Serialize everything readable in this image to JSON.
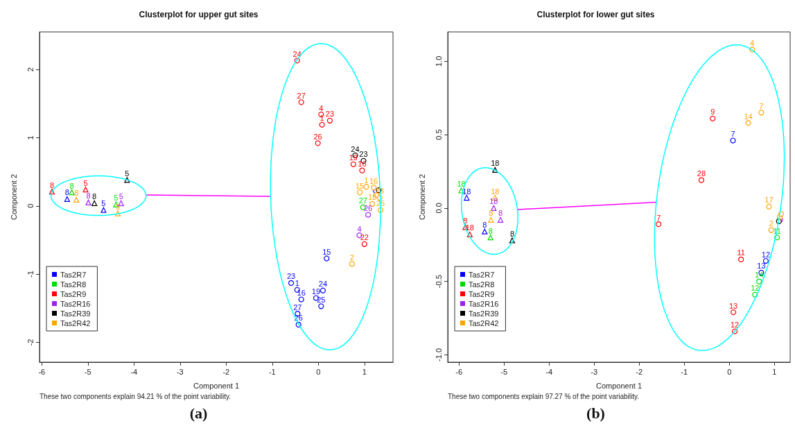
{
  "chart_data": [
    {
      "type": "scatter",
      "title": "Clusterplot for upper gut sites",
      "xlabel": "Component 1",
      "ylabel": "Component 2",
      "xlim": [
        -6.05,
        1.62
      ],
      "ylim": [
        -2.29,
        2.55
      ],
      "xticks": [
        -6,
        -5,
        -4,
        -3,
        -2,
        -1,
        0,
        1
      ],
      "yticks": [
        -2,
        -1,
        0,
        1,
        2
      ],
      "legend": "bottom left",
      "annotations": [
        "These two components explain 94.21 % of the point variability.",
        "(a)",
        {
          "text": "8",
          "x": -5.45,
          "y": 0.1
        },
        {
          "text": "5",
          "x": -4.66,
          "y": -0.06
        },
        {
          "text": "8",
          "x": -5.35,
          "y": 0.2
        },
        {
          "text": "5",
          "x": -4.39,
          "y": 0.02
        },
        {
          "text": "8",
          "x": -5.78,
          "y": 0.21
        },
        {
          "text": "5",
          "x": -5.05,
          "y": 0.24
        },
        {
          "text": "8",
          "x": -4.99,
          "y": 0.05
        },
        {
          "text": "5",
          "x": -4.28,
          "y": 0.04
        },
        {
          "text": "8",
          "x": -4.86,
          "y": 0.04
        },
        {
          "text": "5",
          "x": -4.15,
          "y": 0.38
        },
        {
          "text": "8",
          "x": -5.25,
          "y": 0.09
        },
        {
          "text": "5",
          "x": -4.35,
          "y": -0.11
        },
        {
          "text": "23",
          "x": -0.59,
          "y": -1.13
        },
        {
          "text": "1",
          "x": -0.46,
          "y": -1.23
        },
        {
          "text": "16",
          "x": -0.37,
          "y": -1.37
        },
        {
          "text": "19",
          "x": -0.05,
          "y": -1.35
        },
        {
          "text": "24",
          "x": 0.1,
          "y": -1.24
        },
        {
          "text": "25",
          "x": 0.06,
          "y": -1.47
        },
        {
          "text": "27",
          "x": -0.45,
          "y": -1.58
        },
        {
          "text": "26",
          "x": -0.43,
          "y": -1.74
        },
        {
          "text": "15",
          "x": 0.18,
          "y": -0.77
        },
        {
          "text": "27",
          "x": 0.97,
          "y": -0.02
        },
        {
          "text": "24",
          "x": -0.46,
          "y": 2.13
        },
        {
          "text": "27",
          "x": -0.37,
          "y": 1.52
        },
        {
          "text": "4",
          "x": 0.06,
          "y": 1.34
        },
        {
          "text": "23",
          "x": 0.25,
          "y": 1.25
        },
        {
          "text": "1",
          "x": 0.08,
          "y": 1.19
        },
        {
          "text": "26",
          "x": -0.01,
          "y": 0.92
        },
        {
          "text": "19",
          "x": 0.76,
          "y": 0.61
        },
        {
          "text": "16",
          "x": 0.95,
          "y": 0.52
        },
        {
          "text": "22",
          "x": 1.0,
          "y": -0.56
        },
        {
          "text": "4",
          "x": 0.89,
          "y": -0.43
        },
        {
          "text": "26",
          "x": 1.08,
          "y": -0.13
        },
        {
          "text": "24",
          "x": 0.8,
          "y": 0.74
        },
        {
          "text": "23",
          "x": 0.98,
          "y": 0.66
        },
        {
          "text": "2",
          "x": 0.73,
          "y": -0.85
        },
        {
          "text": "15",
          "x": 0.9,
          "y": 0.2
        },
        {
          "text": "1",
          "x": 1.04,
          "y": 0.28
        },
        {
          "text": "16",
          "x": 1.2,
          "y": 0.27
        },
        {
          "text": "18",
          "x": 1.17,
          "y": 0.03
        },
        {
          "text": "25",
          "x": 1.35,
          "y": -0.06
        },
        {
          "text": "23",
          "x": 1.33,
          "y": 0.12
        }
      ],
      "series": [
        {
          "name": "Tas2R7",
          "color": "#0000ff",
          "marker": "triangle",
          "x": [
            -5.45,
            -4.66
          ],
          "values": [
            0.1,
            -0.06
          ]
        },
        {
          "name": "Tas2R8",
          "color": "#00dd00",
          "marker": "triangle",
          "x": [
            -5.35,
            -4.39
          ],
          "values": [
            0.2,
            0.02
          ]
        },
        {
          "name": "Tas2R9",
          "color": "#ff0000",
          "marker": "triangle",
          "x": [
            -5.78,
            -5.05
          ],
          "values": [
            0.21,
            0.24
          ]
        },
        {
          "name": "Tas2R16",
          "color": "#a020f0",
          "marker": "triangle",
          "x": [
            -4.99,
            -4.28
          ],
          "values": [
            0.05,
            0.04
          ]
        },
        {
          "name": "Tas2R39",
          "color": "#000000",
          "marker": "triangle",
          "x": [
            -4.86,
            -4.15
          ],
          "values": [
            0.04,
            0.38
          ]
        },
        {
          "name": "Tas2R42",
          "color": "#ffa500",
          "marker": "triangle",
          "x": [
            -5.25,
            -4.35
          ],
          "values": [
            0.09,
            -0.11
          ]
        },
        {
          "color": "#0000ff",
          "marker": "circle",
          "x": [
            -0.59,
            -0.46,
            -0.37,
            -0.05,
            0.1,
            0.06,
            -0.45,
            -0.43,
            0.18,
            1.25
          ],
          "values": [
            -1.13,
            -1.23,
            -1.37,
            -1.35,
            -1.24,
            -1.47,
            -1.58,
            -1.74,
            -0.77,
            0.22
          ]
        },
        {
          "color": "#00dd00",
          "marker": "circle",
          "x": [
            0.97
          ],
          "values": [
            -0.02
          ]
        },
        {
          "color": "#ff0000",
          "marker": "circle",
          "x": [
            -0.46,
            -0.37,
            0.06,
            0.25,
            0.08,
            -0.01,
            0.76,
            0.95,
            1.0
          ],
          "values": [
            2.13,
            1.52,
            1.34,
            1.25,
            1.19,
            0.92,
            0.61,
            0.52,
            -0.56
          ]
        },
        {
          "color": "#a020f0",
          "marker": "circle",
          "x": [
            0.89,
            1.08
          ],
          "values": [
            -0.43,
            -0.13
          ]
        },
        {
          "color": "#000000",
          "marker": "circle",
          "x": [
            0.8,
            0.98,
            1.31
          ],
          "values": [
            0.74,
            0.66,
            0.23
          ]
        },
        {
          "color": "#ffa500",
          "marker": "circle",
          "x": [
            0.73,
            0.9,
            1.04,
            1.2,
            1.17,
            1.35,
            1.33,
            1.26
          ],
          "values": [
            -0.85,
            0.2,
            0.28,
            0.27,
            0.03,
            -0.06,
            0.12,
            0.16
          ]
        },
        {
          "type": "line",
          "color": "#ff00ff",
          "marker": "none",
          "x": [
            -3.74,
            -1.04
          ],
          "values": [
            0.16,
            0.14
          ]
        }
      ]
    },
    {
      "type": "scatter",
      "title": "Clusterplot for lower gut sites",
      "xlabel": "Component 1",
      "ylabel": "Component 2",
      "xlim": [
        -6.25,
        1.35
      ],
      "ylim": [
        -1.05,
        1.2
      ],
      "xticks": [
        -6,
        -5,
        -4,
        -3,
        -2,
        -1,
        0,
        1
      ],
      "yticks": [
        {
          "value": -1,
          "label": "-1.0"
        },
        {
          "value": -0.5,
          "label": "-0.5"
        },
        {
          "value": 0,
          "label": "0.0"
        },
        {
          "value": 0.5,
          "label": "0.5"
        },
        {
          "value": 1,
          "label": "1.0"
        }
      ],
      "legend": "bottom left",
      "annotations": [
        "These two components explain 97.27 % of the point variability.",
        "(b)",
        {
          "text": "18",
          "x": -5.83,
          "y": 0.07
        },
        {
          "text": "8",
          "x": -5.43,
          "y": -0.16
        },
        {
          "text": "18",
          "x": -5.95,
          "y": 0.12
        },
        {
          "text": "8",
          "x": -5.3,
          "y": -0.2
        },
        {
          "text": "8",
          "x": -5.86,
          "y": -0.13
        },
        {
          "text": "18",
          "x": -5.76,
          "y": -0.18
        },
        {
          "text": "18",
          "x": -5.23,
          "y": 0.0
        },
        {
          "text": "8",
          "x": -5.08,
          "y": -0.08
        },
        {
          "text": "18",
          "x": -5.2,
          "y": 0.26
        },
        {
          "text": "8",
          "x": -4.82,
          "y": -0.22
        },
        {
          "text": "18",
          "x": -5.2,
          "y": 0.07
        },
        {
          "text": "8",
          "x": -5.29,
          "y": -0.08
        },
        {
          "text": "7",
          "x": 0.08,
          "y": 0.46
        },
        {
          "text": "12",
          "x": 0.81,
          "y": -0.36
        },
        {
          "text": "13",
          "x": 0.71,
          "y": -0.44
        },
        {
          "text": "11",
          "x": 1.06,
          "y": -0.2
        },
        {
          "text": "14",
          "x": 0.66,
          "y": -0.5
        },
        {
          "text": "12",
          "x": 0.57,
          "y": -0.59
        },
        {
          "text": "9",
          "x": -0.37,
          "y": 0.61
        },
        {
          "text": "28",
          "x": -0.62,
          "y": 0.19
        },
        {
          "text": "7",
          "x": -1.57,
          "y": -0.11
        },
        {
          "text": "11",
          "x": 0.26,
          "y": -0.35
        },
        {
          "text": "13",
          "x": 0.09,
          "y": -0.71
        },
        {
          "text": "12",
          "x": 0.12,
          "y": -0.84
        },
        {
          "text": "4",
          "x": 0.51,
          "y": 1.08
        },
        {
          "text": "7",
          "x": 0.71,
          "y": 0.65
        },
        {
          "text": "14",
          "x": 0.42,
          "y": 0.58
        },
        {
          "text": "17",
          "x": 0.88,
          "y": 0.01
        },
        {
          "text": "2",
          "x": 0.93,
          "y": -0.15
        }
      ],
      "series": [
        {
          "name": "Tas2R7",
          "color": "#0000ff",
          "marker": "triangle",
          "x": [
            -5.83,
            -5.43
          ],
          "values": [
            0.07,
            -0.16
          ]
        },
        {
          "name": "Tas2R8",
          "color": "#00dd00",
          "marker": "triangle",
          "x": [
            -5.95,
            -5.3
          ],
          "values": [
            0.12,
            -0.2
          ]
        },
        {
          "name": "Tas2R9",
          "color": "#ff0000",
          "marker": "triangle",
          "x": [
            -5.86,
            -5.76
          ],
          "values": [
            -0.13,
            -0.18
          ]
        },
        {
          "name": "Tas2R16",
          "color": "#a020f0",
          "marker": "triangle",
          "x": [
            -5.23,
            -5.08
          ],
          "values": [
            0.0,
            -0.08
          ]
        },
        {
          "name": "Tas2R39",
          "color": "#000000",
          "marker": "triangle",
          "x": [
            -5.2,
            -4.82
          ],
          "values": [
            0.26,
            -0.22
          ]
        },
        {
          "name": "Tas2R42",
          "color": "#ffa500",
          "marker": "triangle",
          "x": [
            -5.2,
            -5.29
          ],
          "values": [
            0.07,
            -0.08
          ]
        },
        {
          "color": "#0000ff",
          "marker": "circle",
          "x": [
            0.08,
            0.81,
            0.71
          ],
          "values": [
            0.46,
            -0.36,
            -0.44
          ]
        },
        {
          "color": "#00dd00",
          "marker": "circle",
          "x": [
            1.06,
            0.66,
            0.57
          ],
          "values": [
            -0.2,
            -0.5,
            -0.59
          ]
        },
        {
          "color": "#ff0000",
          "marker": "circle",
          "x": [
            -0.37,
            -0.62,
            -1.57,
            0.26,
            0.09,
            0.12
          ],
          "values": [
            0.61,
            0.19,
            -0.11,
            -0.35,
            -0.71,
            -0.84
          ]
        },
        {
          "color": "#a020f0",
          "marker": "circle",
          "x": [
            1.13
          ],
          "values": [
            -0.08
          ]
        },
        {
          "color": "#000000",
          "marker": "circle",
          "x": [
            1.1
          ],
          "values": [
            -0.09
          ]
        },
        {
          "color": "#ffa500",
          "marker": "circle",
          "x": [
            0.51,
            0.71,
            0.42,
            0.88,
            0.93,
            1.12,
            1.15
          ],
          "values": [
            1.08,
            0.65,
            0.58,
            0.01,
            -0.15,
            -0.06,
            -0.04
          ]
        },
        {
          "type": "line",
          "color": "#ff00ff",
          "marker": "none",
          "x": [
            -4.7,
            -1.62
          ],
          "values": [
            -0.01,
            0.04
          ]
        }
      ]
    }
  ]
}
